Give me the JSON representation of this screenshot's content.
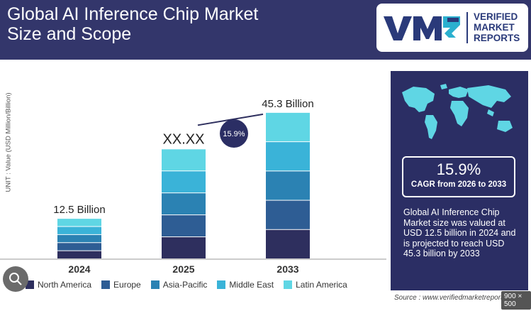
{
  "header": {
    "title_line1": "Global AI Inference Chip Market",
    "title_line2": "Size and Scope",
    "logo_mark": "VMR",
    "logo_text_1": "VERIFIED",
    "logo_text_2": "MARKET",
    "logo_text_3": "REPORTS"
  },
  "axis_unit": "UNIT : Value (USD Million/Billion)",
  "chart_data": {
    "type": "bar",
    "stacked": true,
    "categories": [
      "2024",
      "2025",
      "2033"
    ],
    "totals": [
      12.5,
      null,
      45.3
    ],
    "data_labels": [
      "12.5 Billion",
      "XX.XX",
      "45.3 Billion"
    ],
    "cagr_bubble": "15.9%",
    "series": [
      {
        "name": "North America",
        "color": "#2e2f5e"
      },
      {
        "name": "Europe",
        "color": "#2e5d94"
      },
      {
        "name": "Asia-Pacific",
        "color": "#2b82b3"
      },
      {
        "name": "Middle East",
        "color": "#3ab3d8"
      },
      {
        "name": "Latin America",
        "color": "#5fd6e4"
      }
    ],
    "segment_values": [
      [
        2.5,
        2.5,
        2.5,
        2.5,
        2.5
      ],
      [
        6.8,
        6.8,
        6.8,
        6.8,
        6.8
      ],
      [
        9.06,
        9.06,
        9.06,
        9.06,
        9.06
      ]
    ],
    "grid": false,
    "legend_position": "bottom"
  },
  "panel": {
    "cagr_value": "15.9%",
    "cagr_label": "CAGR from 2026 to 2033",
    "description": "Global AI Inference Chip Market size was valued at USD 12.5 billion in 2024 and is projected to reach USD 45.3 billion by 2033"
  },
  "source": "Source : www.verifiedmarketreports",
  "image_size_badge": "900 × 500",
  "colors": {
    "header_bg": "#33366b",
    "panel_bg": "#2b2e64",
    "map_color": "#5fd6e4"
  }
}
